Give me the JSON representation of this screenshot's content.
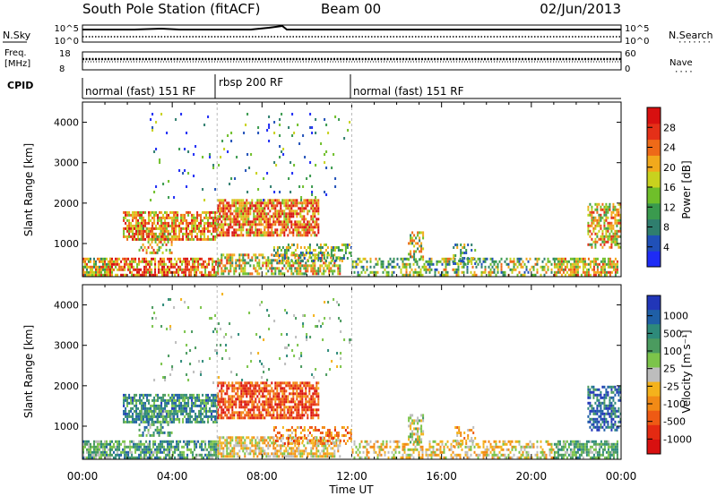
{
  "header": {
    "station": "South Pole Station (fitACF)",
    "beam": "Beam 00",
    "date": "02/Jun/2013"
  },
  "aux_panels": {
    "nsky_label": "N.Sky",
    "nsearch_label": "N.Search",
    "nsky_ticks": [
      "10^5",
      "10^0"
    ],
    "nsearch_ticks": [
      "10^5",
      "10^0"
    ],
    "freq_label_line1": "Freq.",
    "freq_label_line2": "[MHz]",
    "freq_ticks": [
      "18",
      "8"
    ],
    "nave_label": "Nave",
    "nave_ticks": [
      "60",
      "0"
    ],
    "cpid_label": "CPID",
    "modes": [
      {
        "text": "normal (fast) 151 RF",
        "start_hour": 0
      },
      {
        "text": "rbsp 200 RF",
        "start_hour": 6
      },
      {
        "text": "normal (fast) 151 RF",
        "start_hour": 12
      }
    ]
  },
  "chart_data": [
    {
      "type": "heatmap",
      "quantity": "Power",
      "ylabel": "Slant Range [km]",
      "yticks": [
        "1000",
        "2000",
        "3000",
        "4000"
      ],
      "ylim": [
        180,
        4500
      ],
      "xlim": [
        0,
        24
      ],
      "colorbar": {
        "label": "Power [dB]",
        "ticks": [
          "4",
          "8",
          "12",
          "16",
          "20",
          "24",
          "28"
        ],
        "colors": [
          "#1e2cf5",
          "#2050b8",
          "#2f7e6e",
          "#3a9a4e",
          "#6fbf2a",
          "#c8d21e",
          "#f2a91c",
          "#ee6a18",
          "#e43018",
          "#d81010"
        ]
      }
    },
    {
      "type": "heatmap",
      "quantity": "Velocity",
      "ylabel": "Slant Range [km]",
      "yticks": [
        "1000",
        "2000",
        "3000",
        "4000"
      ],
      "ylim": [
        180,
        4500
      ],
      "xlim": [
        0,
        24
      ],
      "xlabel": "Time UT",
      "xticks": [
        "00:00",
        "04:00",
        "08:00",
        "12:00",
        "16:00",
        "20:00",
        "00:00"
      ],
      "colorbar": {
        "label": "Velocity [m s⁻¹]",
        "ticks": [
          "1000",
          "500",
          "100",
          "25",
          "-25",
          "-100",
          "-500",
          "-1000"
        ],
        "colors": [
          "#2136b8",
          "#1f5fa6",
          "#2e8a7a",
          "#4b9b5f",
          "#7cc44a",
          "#bdbdbd",
          "#f4b21c",
          "#f28a16",
          "#ee5a14",
          "#e42a12",
          "#d81010"
        ]
      }
    }
  ]
}
